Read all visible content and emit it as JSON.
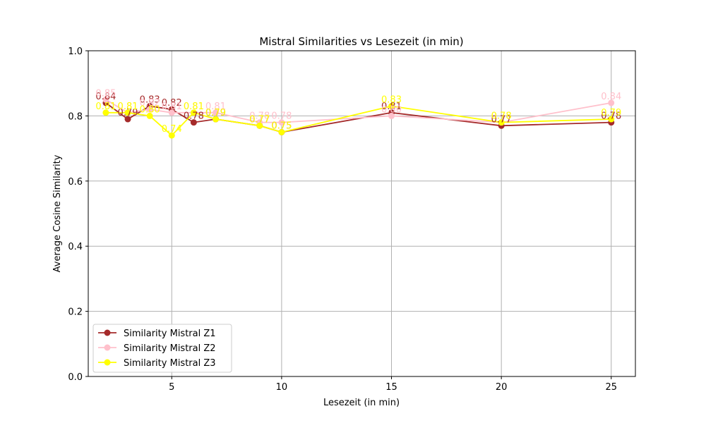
{
  "chart_data": {
    "type": "line",
    "title": "Mistral Similarities vs Lesezeit (in min)",
    "xlabel": "Lesezeit (in min)",
    "ylabel": "Average Cosine Similarity",
    "xlim": [
      1.2,
      26.1
    ],
    "ylim": [
      0,
      1
    ],
    "xticks": [
      5,
      10,
      15,
      20,
      25
    ],
    "yticks": [
      0.0,
      0.2,
      0.4,
      0.6,
      0.8,
      1.0
    ],
    "ytick_labels": [
      "0.0",
      "0.2",
      "0.4",
      "0.6",
      "0.8",
      "1.0"
    ],
    "grid": true,
    "legend_position": "lower-left",
    "x": [
      2,
      3,
      4,
      5,
      6,
      7,
      9,
      10,
      15,
      20,
      25
    ],
    "series": [
      {
        "name": "Similarity Mistral Z1",
        "color": "#a52a2a",
        "values": [
          0.84,
          0.79,
          0.83,
          0.82,
          0.78,
          0.79,
          0.77,
          0.75,
          0.81,
          0.77,
          0.78
        ],
        "labels": [
          "0.84",
          "0.79",
          "0.83",
          "0.82",
          "0.78",
          "0.79",
          "0.77",
          "0.75",
          "0.81",
          "0.77",
          "0.78"
        ]
      },
      {
        "name": "Similarity Mistral Z2",
        "color": "#ffc0cb",
        "values": [
          0.85,
          0.81,
          0.82,
          0.81,
          0.81,
          0.81,
          0.78,
          0.78,
          0.8,
          0.78,
          0.84
        ],
        "labels": [
          "0.85",
          "0.81",
          "0.82",
          "0.81",
          "0.81",
          "0.81",
          "0.78",
          "0.78",
          "0.80",
          "0.78",
          "0.84"
        ]
      },
      {
        "name": "Similarity Mistral Z3",
        "color": "#ffff00",
        "values": [
          0.81,
          0.81,
          0.8,
          0.74,
          0.81,
          0.79,
          0.77,
          0.75,
          0.83,
          0.78,
          0.79
        ],
        "labels": [
          "0.81",
          "0.81",
          "0.80",
          "0.74",
          "0.81",
          "0.79",
          "0.77",
          "0.75",
          "0.83",
          "0.78",
          "0.79"
        ]
      }
    ]
  }
}
